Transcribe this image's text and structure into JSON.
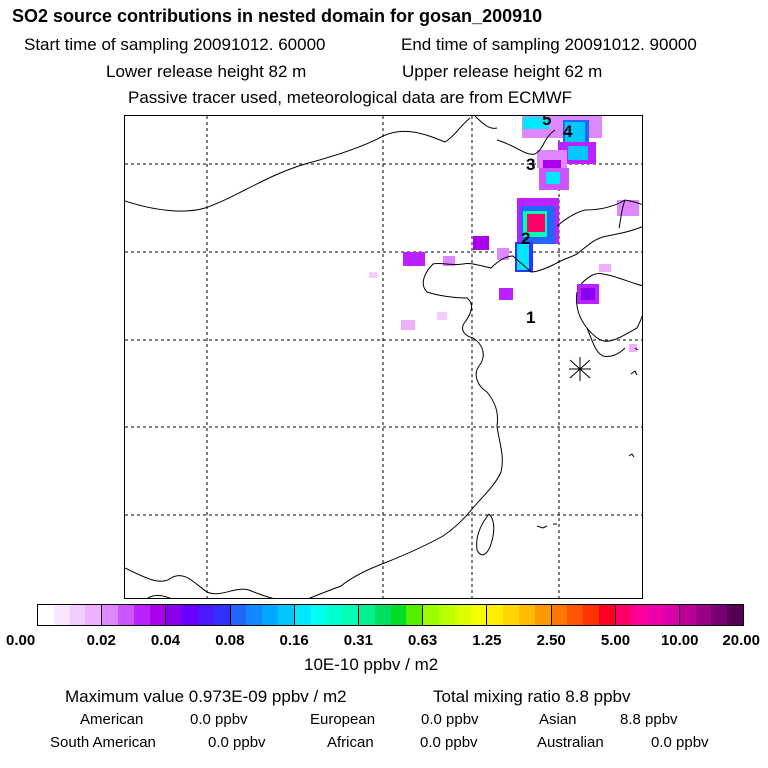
{
  "header": {
    "title": "SO2 source contributions in nested domain for gosan_200910",
    "start_time": "Start time of sampling 20091012. 60000",
    "end_time": "End time of sampling 20091012. 90000",
    "lower_height": "Lower release height   82 m",
    "upper_height": "Upper release height   62 m",
    "tracer_note": "Passive tracer used, meteorological data are from ECMWF"
  },
  "map": {
    "point_labels": [
      "1",
      "2",
      "3",
      "4",
      "5"
    ],
    "receptor": "gosan"
  },
  "colorbar": {
    "ticks": [
      "0.00",
      "0.02",
      "0.04",
      "0.08",
      "0.16",
      "0.31",
      "0.63",
      "1.25",
      "2.50",
      "5.00",
      "10.00",
      "20.00"
    ],
    "units": "10E-10 ppbv / m2",
    "swatches": [
      [
        "#ffffff",
        "#fbe6ff",
        "#f5ccff",
        "#eeb0ff"
      ],
      [
        "#dd88ff",
        "#cc55ff",
        "#bb22ff",
        "#aa00ee"
      ],
      [
        "#8800ee",
        "#6a00ff",
        "#4b18ff",
        "#3030ff"
      ],
      [
        "#2266ff",
        "#1188ff",
        "#00a8ff",
        "#00c8ff"
      ],
      [
        "#00e8ff",
        "#00ffee",
        "#00ffd0",
        "#00ffb4"
      ],
      [
        "#00f090",
        "#00e060",
        "#00dd22",
        "#55ee00"
      ],
      [
        "#99ff00",
        "#bbff00",
        "#ddff00",
        "#f5ff00"
      ],
      [
        "#ffee00",
        "#ffd700",
        "#ffbb00",
        "#ff9900"
      ],
      [
        "#ff7700",
        "#ff5500",
        "#ff3300",
        "#ff0022"
      ],
      [
        "#ff0066",
        "#ff0099",
        "#ee00aa",
        "#dd00aa"
      ],
      [
        "#bb0099",
        "#990088",
        "#770070",
        "#550055"
      ]
    ]
  },
  "stats": {
    "max_value": "Maximum value  0.973E-09 ppbv / m2",
    "total_mixing": "Total mixing ratio        8.8 ppbv",
    "regions": [
      {
        "label": "American",
        "value": "0.0 ppbv"
      },
      {
        "label": "European",
        "value": "0.0 ppbv"
      },
      {
        "label": "Asian",
        "value": "8.8 ppbv"
      },
      {
        "label": "South American",
        "value": "0.0 ppbv"
      },
      {
        "label": "African",
        "value": "0.0 ppbv"
      },
      {
        "label": "Australian",
        "value": "0.0 ppbv"
      }
    ]
  }
}
